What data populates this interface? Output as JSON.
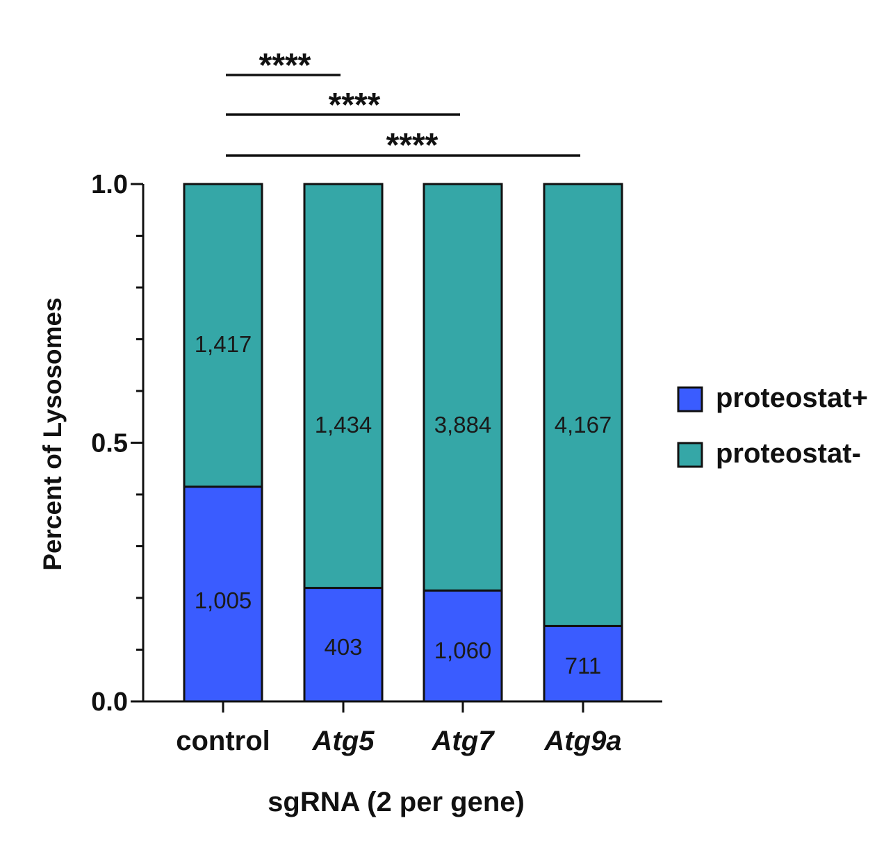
{
  "chart_data": {
    "type": "bar",
    "stacked": true,
    "xlabel": "sgRNA (2 per gene)",
    "ylabel": "Percent of Lysosomes",
    "ylim": [
      0,
      1.0
    ],
    "y_tick_labels": [
      "0.0",
      "0.5",
      "1.0"
    ],
    "categories": [
      "control",
      "Atg5",
      "Atg7",
      "Atg9a"
    ],
    "category_italic": [
      false,
      true,
      true,
      true
    ],
    "series": [
      {
        "name": "proteostat+",
        "color": "#3a5cff",
        "counts": [
          1005,
          403,
          1060,
          711
        ],
        "count_labels": [
          "1,005",
          "403",
          "1,060",
          "711"
        ]
      },
      {
        "name": "proteostat-",
        "color": "#35a7a7",
        "counts": [
          1417,
          1434,
          3884,
          4167
        ],
        "count_labels": [
          "1,417",
          "1,434",
          "3,884",
          "4,167"
        ]
      }
    ],
    "legend_position": "right",
    "significance": [
      {
        "from": "control",
        "to": "Atg5",
        "label": "****"
      },
      {
        "from": "control",
        "to": "Atg7",
        "label": "****"
      },
      {
        "from": "control",
        "to": "Atg9a",
        "label": "****"
      }
    ],
    "grid": false
  }
}
